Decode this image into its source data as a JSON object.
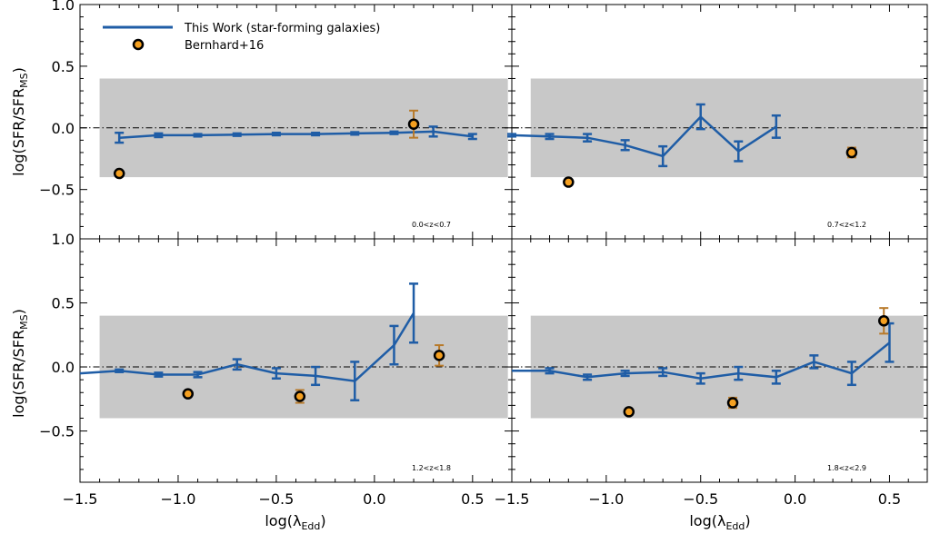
{
  "chart_data": [
    {
      "type": "line",
      "panel_label": "0.0<z<0.7",
      "xlabel": "",
      "ylabel": "log(SFR/SFR_MS)",
      "xlim": [
        -1.5,
        0.7
      ],
      "ylim": [
        -0.9,
        1.0
      ],
      "shaded_band": [
        -0.4,
        0.4
      ],
      "reference_line": 0.0,
      "series": [
        {
          "name": "This Work (star-forming galaxies)",
          "x": [
            -1.3,
            -1.1,
            -0.9,
            -0.7,
            -0.5,
            -0.3,
            -0.1,
            0.1,
            0.3,
            0.5
          ],
          "y": [
            -0.08,
            -0.06,
            -0.06,
            -0.055,
            -0.05,
            -0.05,
            -0.045,
            -0.04,
            -0.03,
            -0.07
          ],
          "yerr": [
            0.04,
            0.015,
            0.01,
            0.01,
            0.01,
            0.01,
            0.01,
            0.01,
            0.04,
            0.02
          ]
        },
        {
          "name": "Bernhard+16",
          "x": [
            -1.3,
            0.2
          ],
          "y": [
            -0.37,
            0.03
          ],
          "yerr": [
            0.01,
            0.11
          ]
        }
      ]
    },
    {
      "type": "line",
      "panel_label": "0.7<z<1.2",
      "xlabel": "",
      "ylabel": "",
      "xlim": [
        -1.5,
        0.7
      ],
      "ylim": [
        -0.9,
        1.0
      ],
      "shaded_band": [
        -0.4,
        0.4
      ],
      "reference_line": 0.0,
      "series": [
        {
          "name": "This Work (star-forming galaxies)",
          "x": [
            -1.5,
            -1.3,
            -1.1,
            -0.9,
            -0.7,
            -0.5,
            -0.3,
            -0.1
          ],
          "y": [
            -0.06,
            -0.07,
            -0.08,
            -0.14,
            -0.23,
            0.09,
            -0.19,
            0.01
          ],
          "yerr": [
            0.01,
            0.02,
            0.03,
            0.04,
            0.08,
            0.1,
            0.08,
            0.09
          ]
        },
        {
          "name": "Bernhard+16",
          "x": [
            -1.2,
            0.3
          ],
          "y": [
            -0.44,
            -0.2
          ],
          "yerr": [
            0.01,
            0.04
          ]
        }
      ]
    },
    {
      "type": "line",
      "panel_label": "1.2<z<1.8",
      "xlabel": "log(λ_Edd)",
      "ylabel": "log(SFR/SFR_MS)",
      "xlim": [
        -1.5,
        0.7
      ],
      "ylim": [
        -0.9,
        1.0
      ],
      "shaded_band": [
        -0.4,
        0.4
      ],
      "reference_line": 0.0,
      "series": [
        {
          "name": "This Work (star-forming galaxies)",
          "x": [
            -1.5,
            -1.3,
            -1.1,
            -0.9,
            -0.7,
            -0.5,
            -0.3,
            -0.1,
            0.1,
            0.2
          ],
          "y": [
            -0.05,
            -0.03,
            -0.06,
            -0.06,
            0.02,
            -0.05,
            -0.07,
            -0.11,
            0.17,
            0.42
          ],
          "yerr": [
            0.0,
            0.01,
            0.015,
            0.02,
            0.04,
            0.04,
            0.07,
            0.15,
            0.15,
            0.23
          ]
        },
        {
          "name": "Bernhard+16",
          "x": [
            -0.95,
            -0.38,
            0.33
          ],
          "y": [
            -0.21,
            -0.23,
            0.09
          ],
          "yerr": [
            0.01,
            0.05,
            0.08
          ]
        }
      ]
    },
    {
      "type": "line",
      "panel_label": "1.8<z<2.9",
      "xlabel": "log(λ_Edd)",
      "ylabel": "",
      "xlim": [
        -1.5,
        0.7
      ],
      "ylim": [
        -0.9,
        1.0
      ],
      "shaded_band": [
        -0.4,
        0.4
      ],
      "reference_line": 0.0,
      "series": [
        {
          "name": "This Work (star-forming galaxies)",
          "x": [
            -1.5,
            -1.3,
            -1.1,
            -0.9,
            -0.7,
            -0.5,
            -0.3,
            -0.1,
            0.1,
            0.3,
            0.5
          ],
          "y": [
            -0.03,
            -0.03,
            -0.08,
            -0.05,
            -0.04,
            -0.09,
            -0.05,
            -0.08,
            0.04,
            -0.05,
            0.19
          ],
          "yerr": [
            0.0,
            0.02,
            0.02,
            0.02,
            0.03,
            0.04,
            0.05,
            0.05,
            0.05,
            0.09,
            0.15
          ]
        },
        {
          "name": "Bernhard+16",
          "x": [
            -0.88,
            -0.33,
            0.47
          ],
          "y": [
            -0.35,
            -0.28,
            0.36
          ],
          "yerr": [
            0.02,
            0.04,
            0.1
          ]
        }
      ]
    }
  ],
  "legend": {
    "line_label": "This Work (star-forming galaxies)",
    "marker_label": "Bernhard+16",
    "placement": "top-left of first panel"
  },
  "axis_labels": {
    "y_main": "log(SFR/SFR",
    "y_sub": "MS",
    "y_close": ")",
    "x_main": "log(λ",
    "x_sub": "Edd",
    "x_close": ")"
  },
  "tick_labels": {
    "x": [
      "−1.5",
      "−1.0",
      "−0.5",
      "0.0",
      "0.5"
    ],
    "y_top": [
      "−0.5",
      "0.0",
      "0.5",
      "1.0"
    ],
    "y_bottom": [
      "−0.5",
      "0.0",
      "0.5",
      "1.0"
    ]
  },
  "colors": {
    "line": "#1f5da6",
    "marker_fill": "#f5a020",
    "marker_edge": "#000000",
    "marker_errorbar": "#b87a2a",
    "band": "#c8c8c8"
  }
}
